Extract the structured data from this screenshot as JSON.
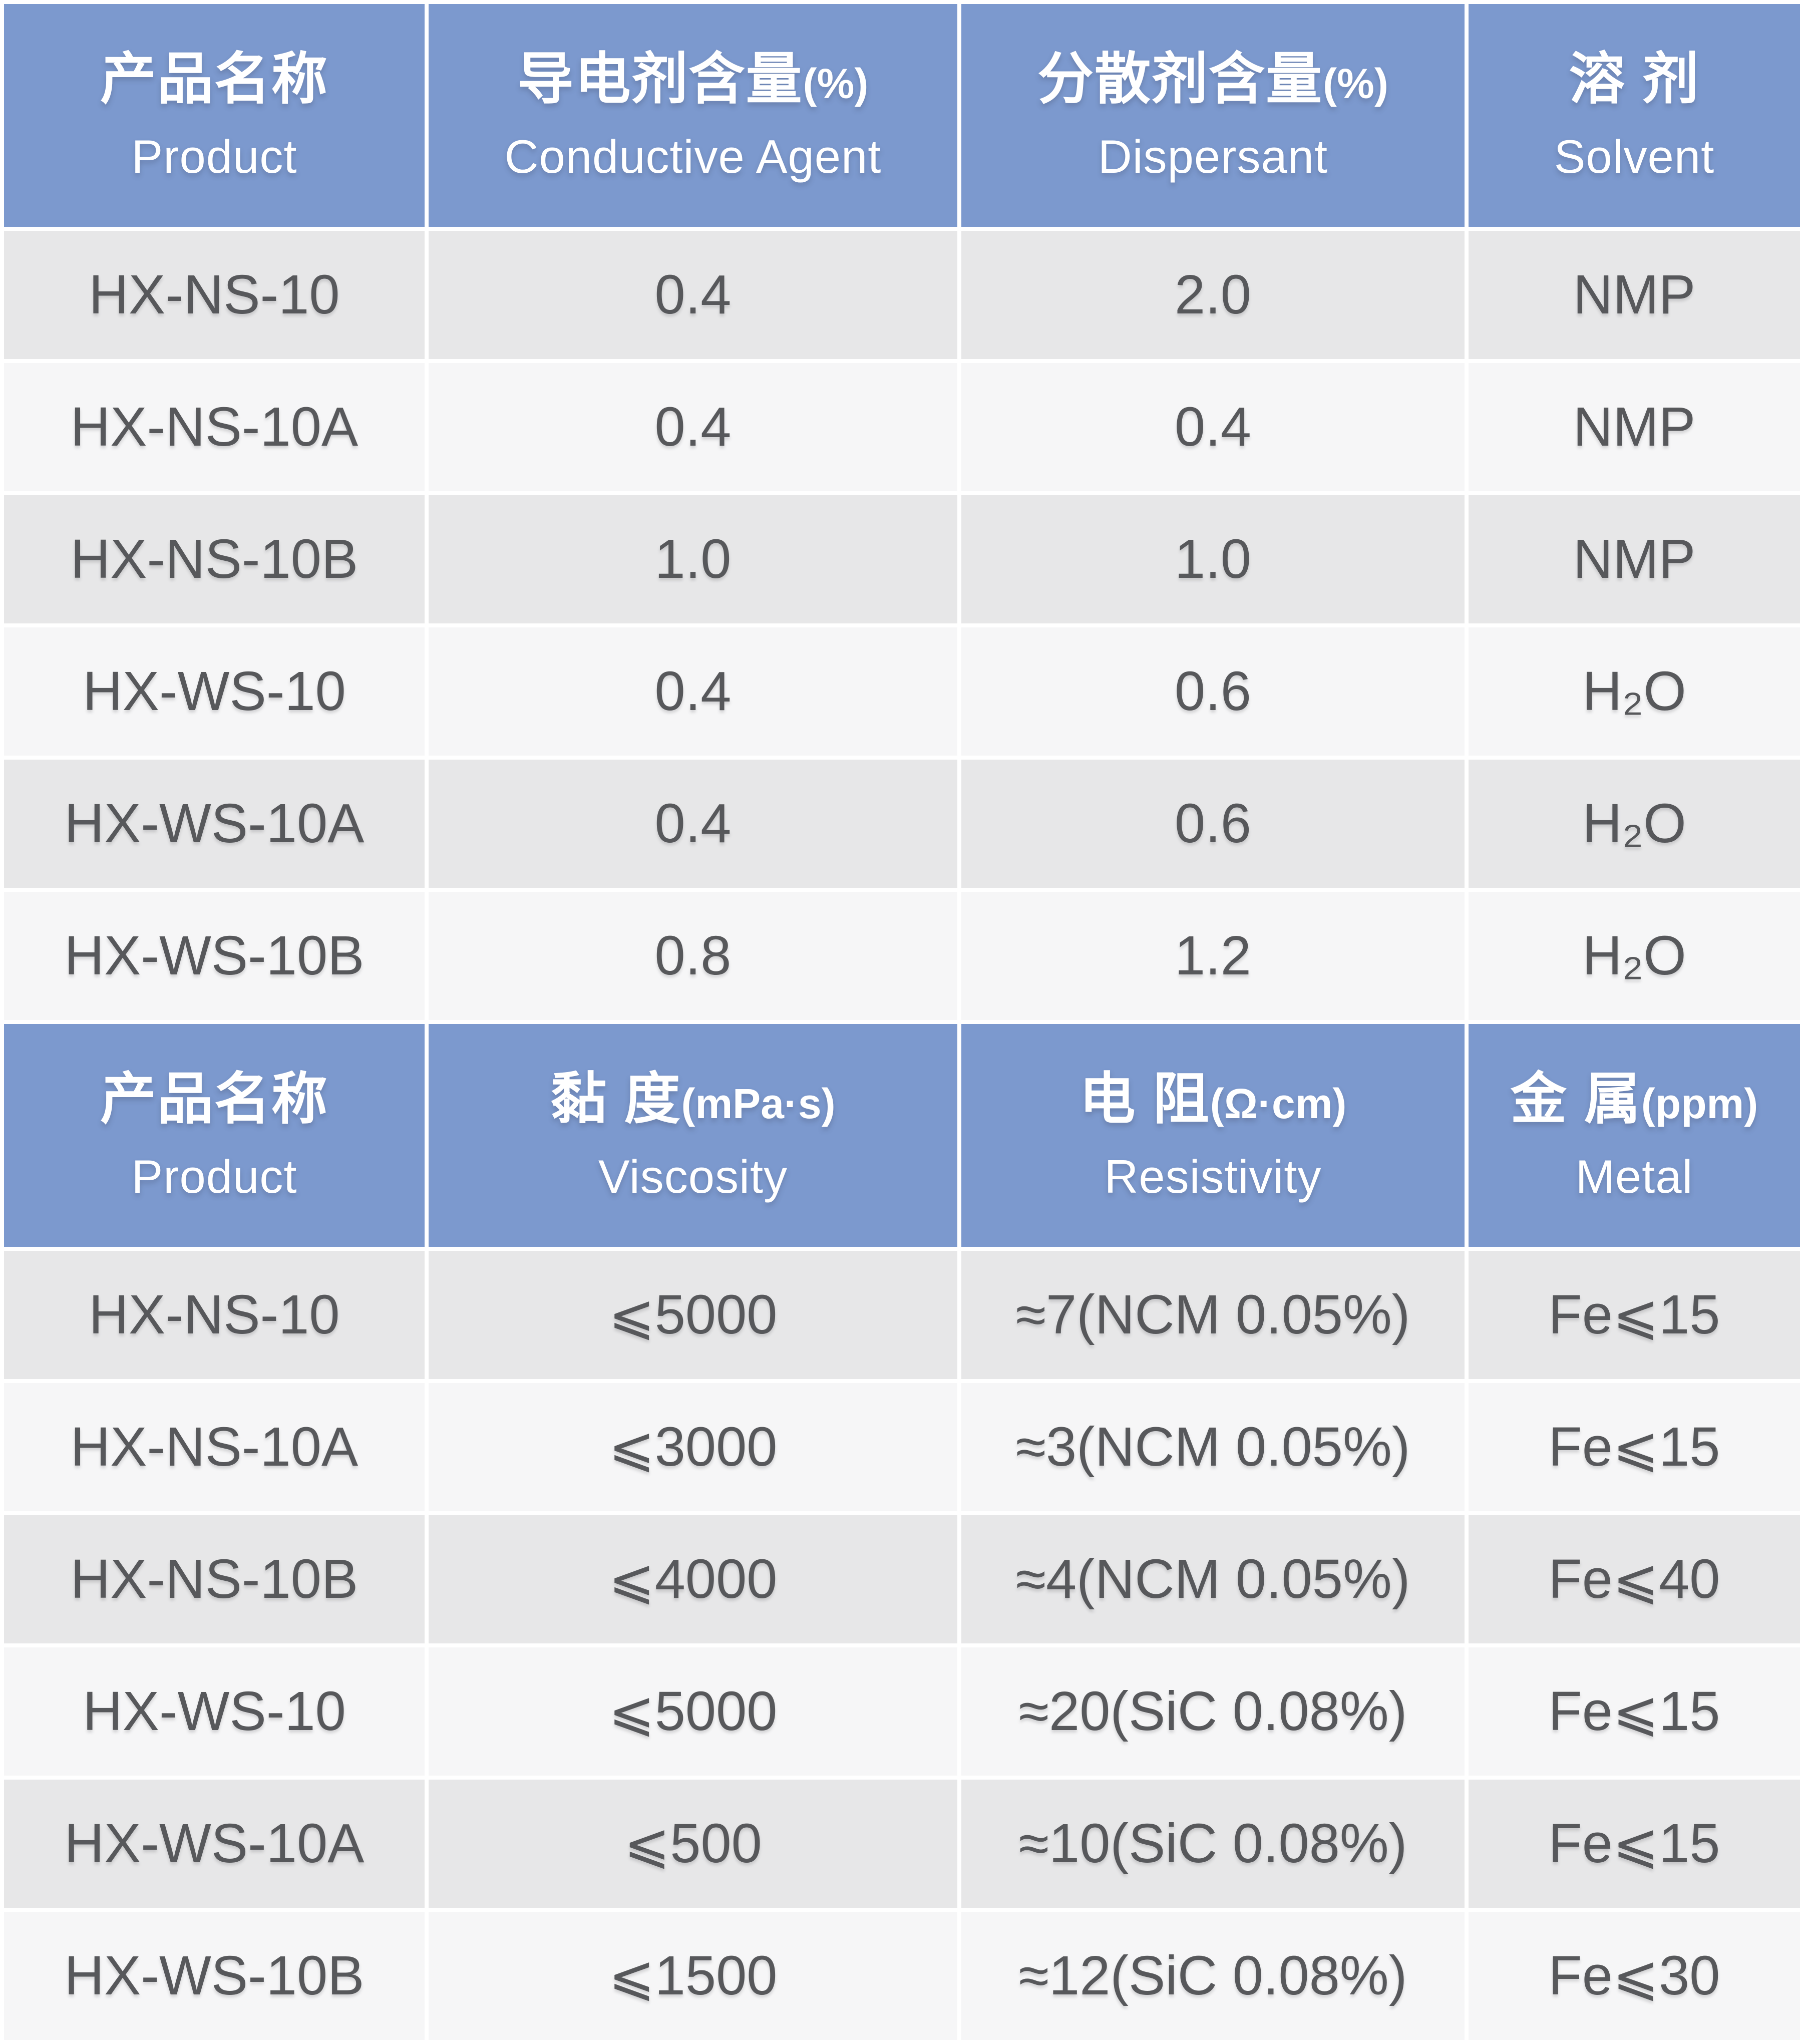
{
  "colors": {
    "header_bg": "#7c99ce",
    "row_dark": "#e7e7e8",
    "row_light": "#f6f6f7",
    "header_text": "#ffffff",
    "body_text": "#57585b",
    "divider": "#ffffff"
  },
  "tables": [
    {
      "name": "composition",
      "headers": [
        {
          "zh": "产品名称",
          "unit": "",
          "en": "Product"
        },
        {
          "zh": "导电剂含量",
          "unit": "(%)",
          "en": "Conductive Agent"
        },
        {
          "zh": "分散剂含量",
          "unit": "(%)",
          "en": "Dispersant"
        },
        {
          "zh": "溶 剂",
          "unit": "",
          "en": "Solvent"
        }
      ],
      "rows": [
        [
          "HX-NS-10",
          "0.4",
          "2.0",
          "NMP"
        ],
        [
          "HX-NS-10A",
          "0.4",
          "0.4",
          "NMP"
        ],
        [
          "HX-NS-10B",
          "1.0",
          "1.0",
          "NMP"
        ],
        [
          "HX-WS-10",
          "0.4",
          "0.6",
          "H₂O"
        ],
        [
          "HX-WS-10A",
          "0.4",
          "0.6",
          "H₂O"
        ],
        [
          "HX-WS-10B",
          "0.8",
          "1.2",
          "H₂O"
        ]
      ]
    },
    {
      "name": "properties",
      "headers": [
        {
          "zh": "产品名称",
          "unit": "",
          "en": "Product"
        },
        {
          "zh": "黏 度",
          "unit": "(mPa·s)",
          "en": "Viscosity"
        },
        {
          "zh": "电 阻",
          "unit": "(Ω·cm)",
          "en": "Resistivity"
        },
        {
          "zh": "金 属",
          "unit": "(ppm)",
          "en": "Metal"
        }
      ],
      "rows": [
        [
          "HX-NS-10",
          "⩽5000",
          "≈7(NCM 0.05%)",
          "Fe⩽15"
        ],
        [
          "HX-NS-10A",
          "⩽3000",
          "≈3(NCM 0.05%)",
          "Fe⩽15"
        ],
        [
          "HX-NS-10B",
          "⩽4000",
          "≈4(NCM 0.05%)",
          "Fe⩽40"
        ],
        [
          "HX-WS-10",
          "⩽5000",
          "≈20(SiC 0.08%)",
          "Fe⩽15"
        ],
        [
          "HX-WS-10A",
          "⩽500",
          "≈10(SiC 0.08%)",
          "Fe⩽15"
        ],
        [
          "HX-WS-10B",
          "⩽1500",
          "≈12(SiC 0.08%)",
          "Fe⩽30"
        ]
      ]
    }
  ],
  "chart_data": [
    {
      "type": "table",
      "title": "产品名称 Product / 导电剂含量(%) Conductive Agent / 分散剂含量(%) Dispersant / 溶剂 Solvent",
      "columns": [
        "产品名称 Product",
        "导电剂含量(%) Conductive Agent",
        "分散剂含量(%) Dispersant",
        "溶剂 Solvent"
      ],
      "rows": [
        [
          "HX-NS-10",
          0.4,
          2.0,
          "NMP"
        ],
        [
          "HX-NS-10A",
          0.4,
          0.4,
          "NMP"
        ],
        [
          "HX-NS-10B",
          1.0,
          1.0,
          "NMP"
        ],
        [
          "HX-WS-10",
          0.4,
          0.6,
          "H₂O"
        ],
        [
          "HX-WS-10A",
          0.4,
          0.6,
          "H₂O"
        ],
        [
          "HX-WS-10B",
          0.8,
          1.2,
          "H₂O"
        ]
      ]
    },
    {
      "type": "table",
      "title": "产品名称 Product / 黏度(mPa·s) Viscosity / 电阻(Ω·cm) Resistivity / 金属(ppm) Metal",
      "columns": [
        "产品名称 Product",
        "黏度(mPa·s) Viscosity",
        "电阻(Ω·cm) Resistivity",
        "金属(ppm) Metal"
      ],
      "rows": [
        [
          "HX-NS-10",
          "⩽5000",
          "≈7(NCM 0.05%)",
          "Fe⩽15"
        ],
        [
          "HX-NS-10A",
          "⩽3000",
          "≈3(NCM 0.05%)",
          "Fe⩽15"
        ],
        [
          "HX-NS-10B",
          "⩽4000",
          "≈4(NCM 0.05%)",
          "Fe⩽40"
        ],
        [
          "HX-WS-10",
          "⩽5000",
          "≈20(SiC 0.08%)",
          "Fe⩽15"
        ],
        [
          "HX-WS-10A",
          "⩽500",
          "≈10(SiC 0.08%)",
          "Fe⩽15"
        ],
        [
          "HX-WS-10B",
          "⩽1500",
          "≈12(SiC 0.08%)",
          "Fe⩽30"
        ]
      ]
    }
  ]
}
